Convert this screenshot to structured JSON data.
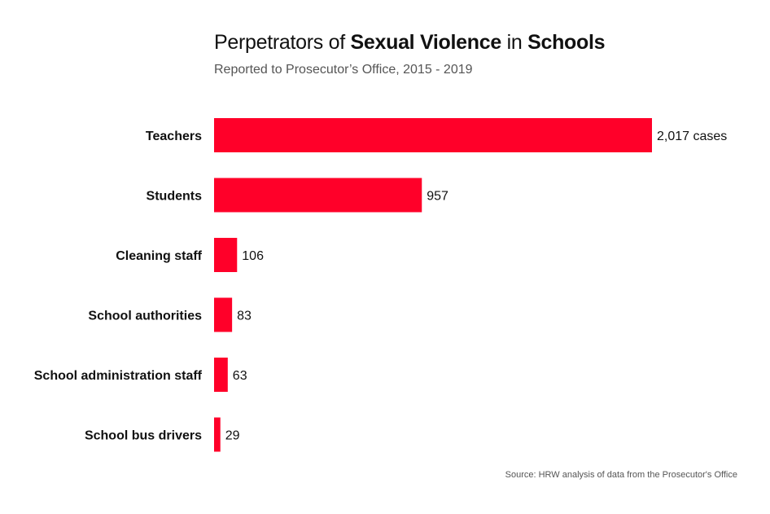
{
  "chart_data": {
    "type": "bar",
    "orientation": "horizontal",
    "title_segments": [
      {
        "text": "Perpetrators of ",
        "bold": false
      },
      {
        "text": "Sexual Violence",
        "bold": true
      },
      {
        "text": " in ",
        "bold": false
      },
      {
        "text": "Schools",
        "bold": true
      }
    ],
    "subtitle": "Reported to Prosecutor’s Office, 2015 - 2019",
    "categories": [
      "Teachers",
      "Students",
      "Cleaning staff",
      "School authorities",
      "School administration staff",
      "School bus drivers"
    ],
    "values": [
      2017,
      957,
      106,
      83,
      63,
      29
    ],
    "data_labels": [
      "2,017 cases",
      "957",
      "106",
      "83",
      "63",
      "29"
    ],
    "xlim": [
      0,
      2017
    ],
    "grid": false,
    "bar_color": "#ff0029",
    "source": "Source: HRW analysis of data from the Prosecutor's Office"
  }
}
